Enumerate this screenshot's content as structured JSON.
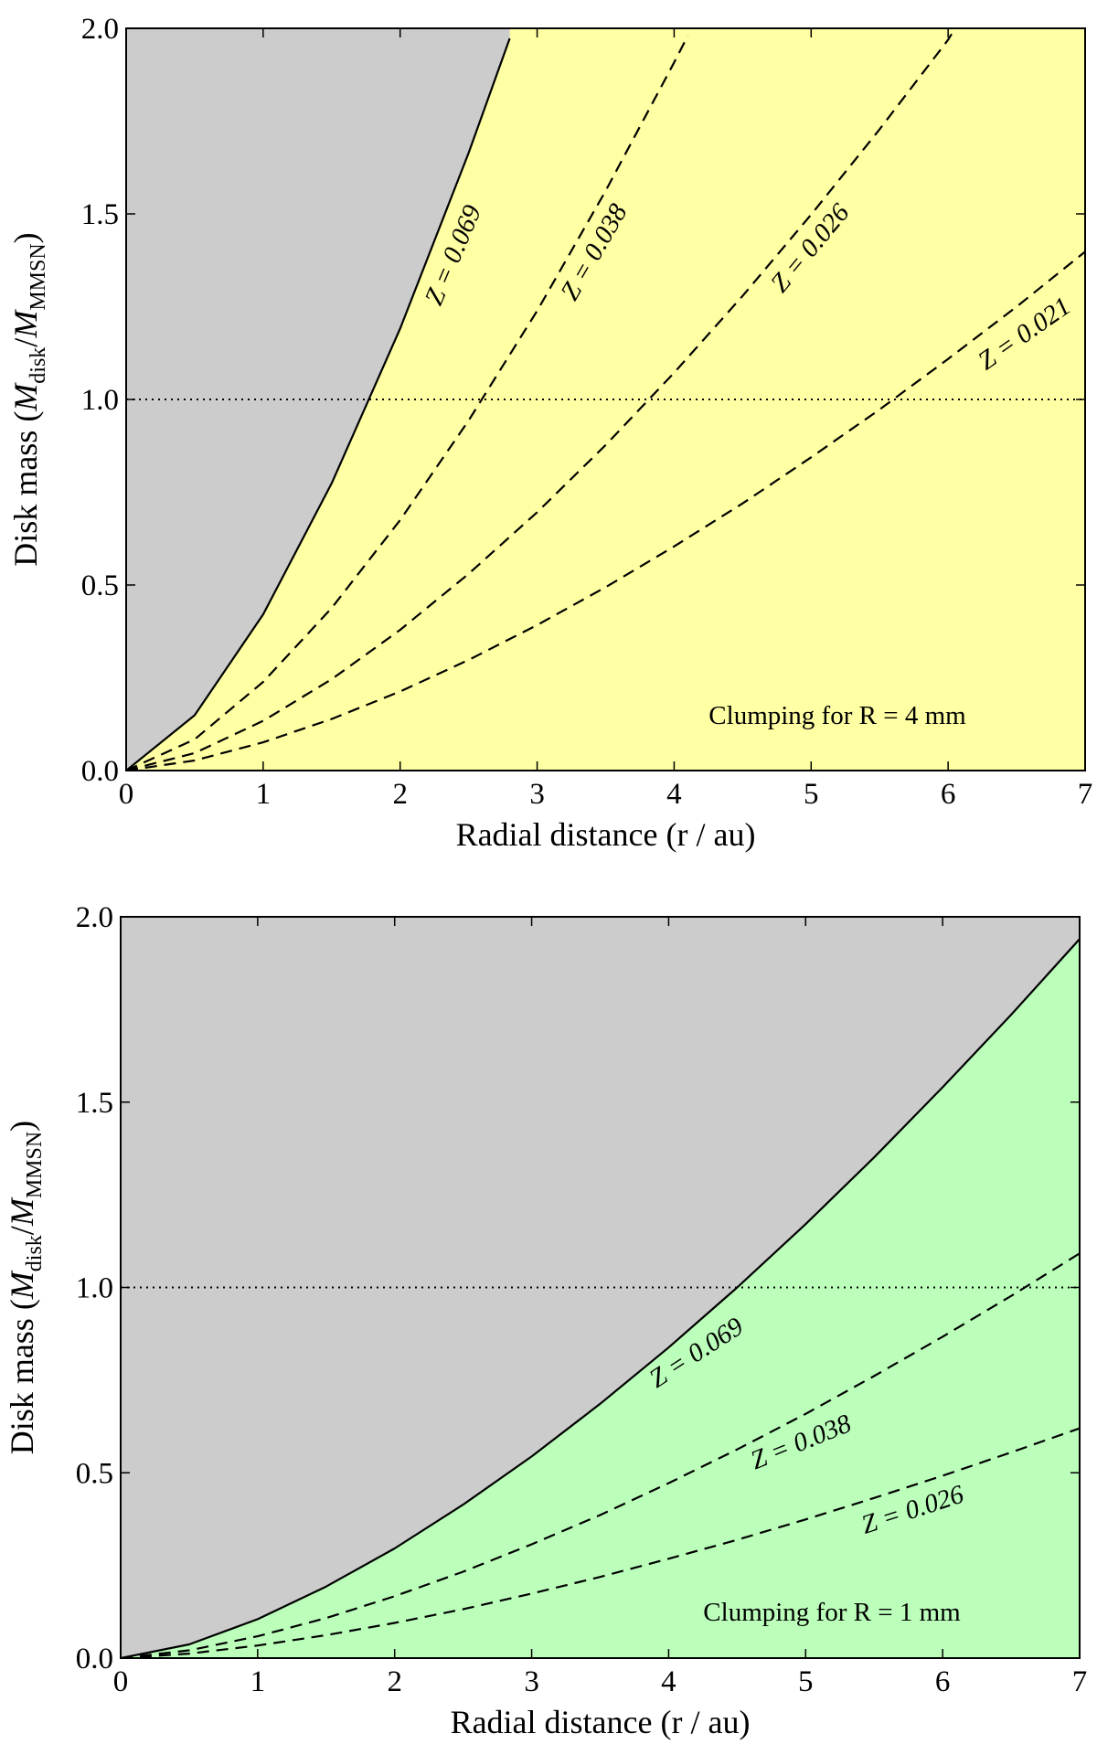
{
  "chart_data": [
    {
      "type": "line",
      "title": "",
      "xlabel": "Radial distance (r / au)",
      "ylabel": {
        "prefix": "Disk mass (",
        "M1": "M",
        "sub1": "disk",
        "slash": "/",
        "M2": "M",
        "sub2": "MMSN",
        "suffix": ")"
      },
      "xlim": [
        0,
        7
      ],
      "ylim": [
        0,
        2.0
      ],
      "xticks": [
        "0",
        "1",
        "2",
        "3",
        "4",
        "5",
        "6",
        "7"
      ],
      "yticks": [
        "0.0",
        "0.5",
        "1.0",
        "1.5",
        "2.0"
      ],
      "annotation": "Clumping for R = 4 mm",
      "reference_line": {
        "y": 1.0,
        "style": "dotted"
      },
      "colors": {
        "unstable_region": "#cccccc",
        "clumping_region": "#ffffa3"
      },
      "series": [
        {
          "name": "Z = 0.069",
          "style": "solid",
          "x": [
            0,
            0.5,
            1,
            1.5,
            2,
            2.5,
            2.8
          ],
          "y": [
            0,
            0.149,
            0.421,
            0.774,
            1.191,
            1.664,
            1.973
          ]
        },
        {
          "name": "Z = 0.038",
          "style": "dashed",
          "x": [
            0,
            0.5,
            1,
            1.5,
            2,
            2.5,
            3,
            3.5,
            4,
            4.1
          ],
          "y": [
            0,
            0.084,
            0.239,
            0.438,
            0.675,
            0.943,
            1.239,
            1.562,
            1.908,
            1.98
          ]
        },
        {
          "name": "Z = 0.026",
          "style": "dashed",
          "x": [
            0,
            0.5,
            1,
            1.5,
            2,
            2.5,
            3,
            3.5,
            4,
            4.5,
            5,
            5.5,
            6,
            6.05
          ],
          "y": [
            0,
            0.047,
            0.134,
            0.246,
            0.379,
            0.53,
            0.696,
            0.877,
            1.072,
            1.279,
            1.498,
            1.728,
            1.969,
            2.0
          ]
        },
        {
          "name": "Z = 0.021",
          "style": "dashed",
          "x": [
            0,
            0.5,
            1,
            1.5,
            2,
            2.5,
            3,
            3.5,
            4,
            4.5,
            5,
            5.5,
            6,
            6.5,
            7
          ],
          "y": [
            0,
            0.027,
            0.076,
            0.139,
            0.213,
            0.298,
            0.392,
            0.494,
            0.604,
            0.72,
            0.844,
            0.973,
            1.109,
            1.25,
            1.398
          ]
        }
      ]
    },
    {
      "type": "line",
      "title": "",
      "xlabel": "Radial distance (r / au)",
      "ylabel": {
        "prefix": "Disk mass (",
        "M1": "M",
        "sub1": "disk",
        "slash": "/",
        "M2": "M",
        "sub2": "MMSN",
        "suffix": ")"
      },
      "xlim": [
        0,
        7
      ],
      "ylim": [
        0,
        2.0
      ],
      "xticks": [
        "0",
        "1",
        "2",
        "3",
        "4",
        "5",
        "6",
        "7"
      ],
      "yticks": [
        "0.0",
        "0.5",
        "1.0",
        "1.5",
        "2.0"
      ],
      "annotation": "Clumping for R = 1 mm",
      "reference_line": {
        "y": 1.0,
        "style": "dotted"
      },
      "colors": {
        "unstable_region": "#cccccc",
        "clumping_region": "#bbffbb"
      },
      "series": [
        {
          "name": "Z = 0.069",
          "style": "solid",
          "x": [
            0,
            0.5,
            1,
            1.5,
            2,
            2.5,
            3,
            3.5,
            4,
            4.5,
            5,
            5.5,
            6,
            6.5,
            7
          ],
          "y": [
            0,
            0.037,
            0.105,
            0.193,
            0.296,
            0.414,
            0.544,
            0.686,
            0.838,
            1.0,
            1.171,
            1.351,
            1.54,
            1.736,
            1.94
          ]
        },
        {
          "name": "Z = 0.038",
          "style": "dashed",
          "x": [
            0,
            0.5,
            1,
            1.5,
            2,
            2.5,
            3,
            3.5,
            4,
            4.5,
            5,
            5.5,
            6,
            6.5,
            7
          ],
          "y": [
            0,
            0.021,
            0.059,
            0.108,
            0.167,
            0.233,
            0.307,
            0.386,
            0.472,
            0.563,
            0.659,
            0.761,
            0.867,
            0.977,
            1.092
          ]
        },
        {
          "name": "Z = 0.026",
          "style": "dashed",
          "x": [
            0,
            0.5,
            1,
            1.5,
            2,
            2.5,
            3,
            3.5,
            4,
            4.5,
            5,
            5.5,
            6,
            6.5,
            7
          ],
          "y": [
            0,
            0.012,
            0.034,
            0.062,
            0.095,
            0.132,
            0.174,
            0.219,
            0.268,
            0.319,
            0.374,
            0.432,
            0.492,
            0.555,
            0.62
          ]
        }
      ]
    }
  ]
}
